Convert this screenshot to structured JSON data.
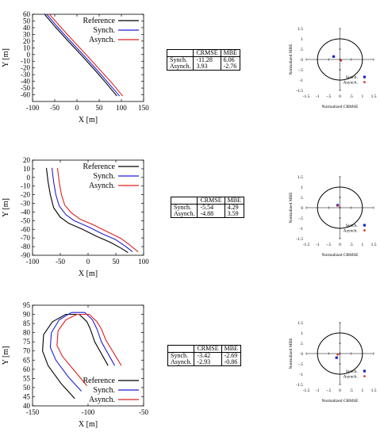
{
  "colors": {
    "reference": "#000000",
    "synch": "#1f1fd6",
    "asynch": "#e02020",
    "axis": "#000000",
    "background": "#ffffff"
  },
  "chart_data": [
    {
      "type": "line",
      "xlabel": "X [m]",
      "ylabel": "Y [m]",
      "xlim": [
        -100,
        150
      ],
      "ylim": [
        -70,
        60
      ],
      "xticks": [
        -100,
        -50,
        0,
        50,
        100,
        150
      ],
      "yticks": [
        -60,
        -50,
        -40,
        -30,
        -20,
        -10,
        0,
        10,
        20,
        30,
        40,
        50,
        60
      ],
      "legend": "top-right",
      "series": [
        {
          "name": "Reference",
          "key": "reference",
          "x": [
            -73,
            -50,
            -20,
            10,
            40,
            65,
            90
          ],
          "y": [
            60,
            42,
            20,
            -1,
            -23,
            -42,
            -62
          ]
        },
        {
          "name": "Synch.",
          "key": "synch",
          "x": [
            -68,
            -45,
            -15,
            15,
            45,
            70,
            96
          ],
          "y": [
            60,
            42,
            20,
            -1,
            -23,
            -42,
            -62
          ]
        },
        {
          "name": "Asynch.",
          "key": "asynch",
          "x": [
            -62,
            -38,
            -8,
            22,
            52,
            78,
            103
          ],
          "y": [
            60,
            42,
            20,
            -1,
            -23,
            -42,
            -62
          ]
        }
      ]
    },
    {
      "type": "line",
      "xlabel": "X [m]",
      "ylabel": "Y [m]",
      "xlim": [
        -100,
        100
      ],
      "ylim": [
        -90,
        20
      ],
      "xticks": [
        -100,
        -50,
        0,
        50,
        100
      ],
      "yticks": [
        -90,
        -80,
        -70,
        -60,
        -50,
        -40,
        -30,
        -20,
        -10,
        0,
        10,
        20
      ],
      "legend": "top-right",
      "series": [
        {
          "name": "Reference",
          "key": "reference",
          "x": [
            -75,
            -72,
            -68,
            -62,
            -50,
            -35,
            -10,
            15,
            40,
            60,
            72
          ],
          "y": [
            11,
            -5,
            -20,
            -35,
            -46,
            -53,
            -60,
            -68,
            -75,
            -82,
            -87
          ]
        },
        {
          "name": "Synch.",
          "key": "synch",
          "x": [
            -65,
            -62,
            -58,
            -52,
            -40,
            -25,
            0,
            25,
            50,
            68,
            80
          ],
          "y": [
            11,
            -5,
            -20,
            -33,
            -43,
            -50,
            -57,
            -65,
            -72,
            -80,
            -86
          ]
        },
        {
          "name": "Asynch.",
          "key": "asynch",
          "x": [
            -55,
            -52,
            -48,
            -42,
            -30,
            -15,
            10,
            35,
            58,
            75,
            90
          ],
          "y": [
            11,
            -5,
            -20,
            -32,
            -41,
            -48,
            -55,
            -63,
            -70,
            -78,
            -86
          ]
        }
      ]
    },
    {
      "type": "line",
      "xlabel": "X [m]",
      "ylabel": "Y [m]",
      "xlim": [
        -150,
        -50
      ],
      "ylim": [
        40,
        95
      ],
      "xticks": [
        -150,
        -100,
        -50
      ],
      "yticks": [
        40,
        45,
        50,
        55,
        60,
        65,
        70,
        75,
        80,
        85,
        90,
        95
      ],
      "legend": "bottom-right",
      "series": [
        {
          "name": "Reference",
          "key": "reference",
          "x": [
            -112,
            -124,
            -136,
            -141,
            -140,
            -132,
            -120,
            -108,
            -101,
            -98,
            -94,
            -82
          ],
          "y": [
            44,
            52,
            62,
            70,
            79,
            86,
            90,
            90,
            86,
            82,
            75,
            62
          ]
        },
        {
          "name": "Synch.",
          "key": "synch",
          "x": [
            -106,
            -118,
            -129,
            -134,
            -133,
            -126,
            -115,
            -103,
            -96,
            -92,
            -88,
            -76
          ],
          "y": [
            48,
            56,
            65,
            72,
            80,
            87,
            91,
            91,
            87,
            82,
            75,
            62
          ]
        },
        {
          "name": "Asynch.",
          "key": "asynch",
          "x": [
            -101,
            -112,
            -123,
            -128,
            -127,
            -120,
            -110,
            -99,
            -92,
            -88,
            -84,
            -70
          ],
          "y": [
            51,
            59,
            67,
            73,
            81,
            87,
            90,
            90,
            86,
            82,
            76,
            62
          ]
        }
      ]
    },
    {
      "type": "scatter",
      "xlabel": "Normalized CRMSE",
      "ylabel": "Normalized MBE",
      "xlim": [
        -1.5,
        1.5
      ],
      "ylim": [
        -1.5,
        1.5
      ],
      "ticks": [
        -1.5,
        -1,
        -0.5,
        0,
        0.5,
        1,
        1.5
      ],
      "legend": "bottom-right",
      "points": [
        {
          "name": "Synch.",
          "key": "synch",
          "x": -0.28,
          "y": 0.14
        },
        {
          "name": "Asynch.",
          "key": "asynch",
          "x": 0.05,
          "y": -0.05
        }
      ]
    },
    {
      "type": "scatter",
      "xlabel": "Normalized CRMSE",
      "ylabel": "Normalized MBE",
      "xlim": [
        -1.5,
        1.5
      ],
      "ylim": [
        -1.5,
        1.5
      ],
      "ticks": [
        -1.5,
        -1,
        -0.5,
        0,
        0.5,
        1,
        1.5
      ],
      "legend": "bottom-right",
      "points": [
        {
          "name": "Synch.",
          "key": "synch",
          "x": -0.1,
          "y": 0.12
        },
        {
          "name": "Asynch.",
          "key": "asynch",
          "x": -0.08,
          "y": 0.1
        }
      ]
    },
    {
      "type": "scatter",
      "xlabel": "Normalized CRMSE",
      "ylabel": "Normalized MBE",
      "xlim": [
        -1.5,
        1.5
      ],
      "ylim": [
        -1.5,
        1.5
      ],
      "ticks": [
        -1.5,
        -1,
        -0.5,
        0,
        0.5,
        1,
        1.5
      ],
      "legend": "bottom-right",
      "points": [
        {
          "name": "Synch.",
          "key": "synch",
          "x": -0.15,
          "y": -0.2
        },
        {
          "name": "Asynch.",
          "key": "asynch",
          "x": -0.1,
          "y": -0.05
        }
      ]
    }
  ],
  "tables": [
    {
      "headers": [
        "",
        "CRMSE",
        "MBE"
      ],
      "rows": [
        [
          "Synch.",
          "-11.28",
          "6.06"
        ],
        [
          "Asynch.",
          "3.93",
          "-2.76"
        ]
      ]
    },
    {
      "headers": [
        "",
        "CRMSE",
        "MBE"
      ],
      "rows": [
        [
          "Synch.",
          "-5.54",
          "4.29"
        ],
        [
          "Asynch.",
          "-4.88",
          "3.59"
        ]
      ]
    },
    {
      "headers": [
        "",
        "CRMSE",
        "MBE"
      ],
      "rows": [
        [
          "Synch.",
          "-3.42",
          "-2.69"
        ],
        [
          "Asynch.",
          "-2.93",
          "-0.86"
        ]
      ]
    }
  ]
}
